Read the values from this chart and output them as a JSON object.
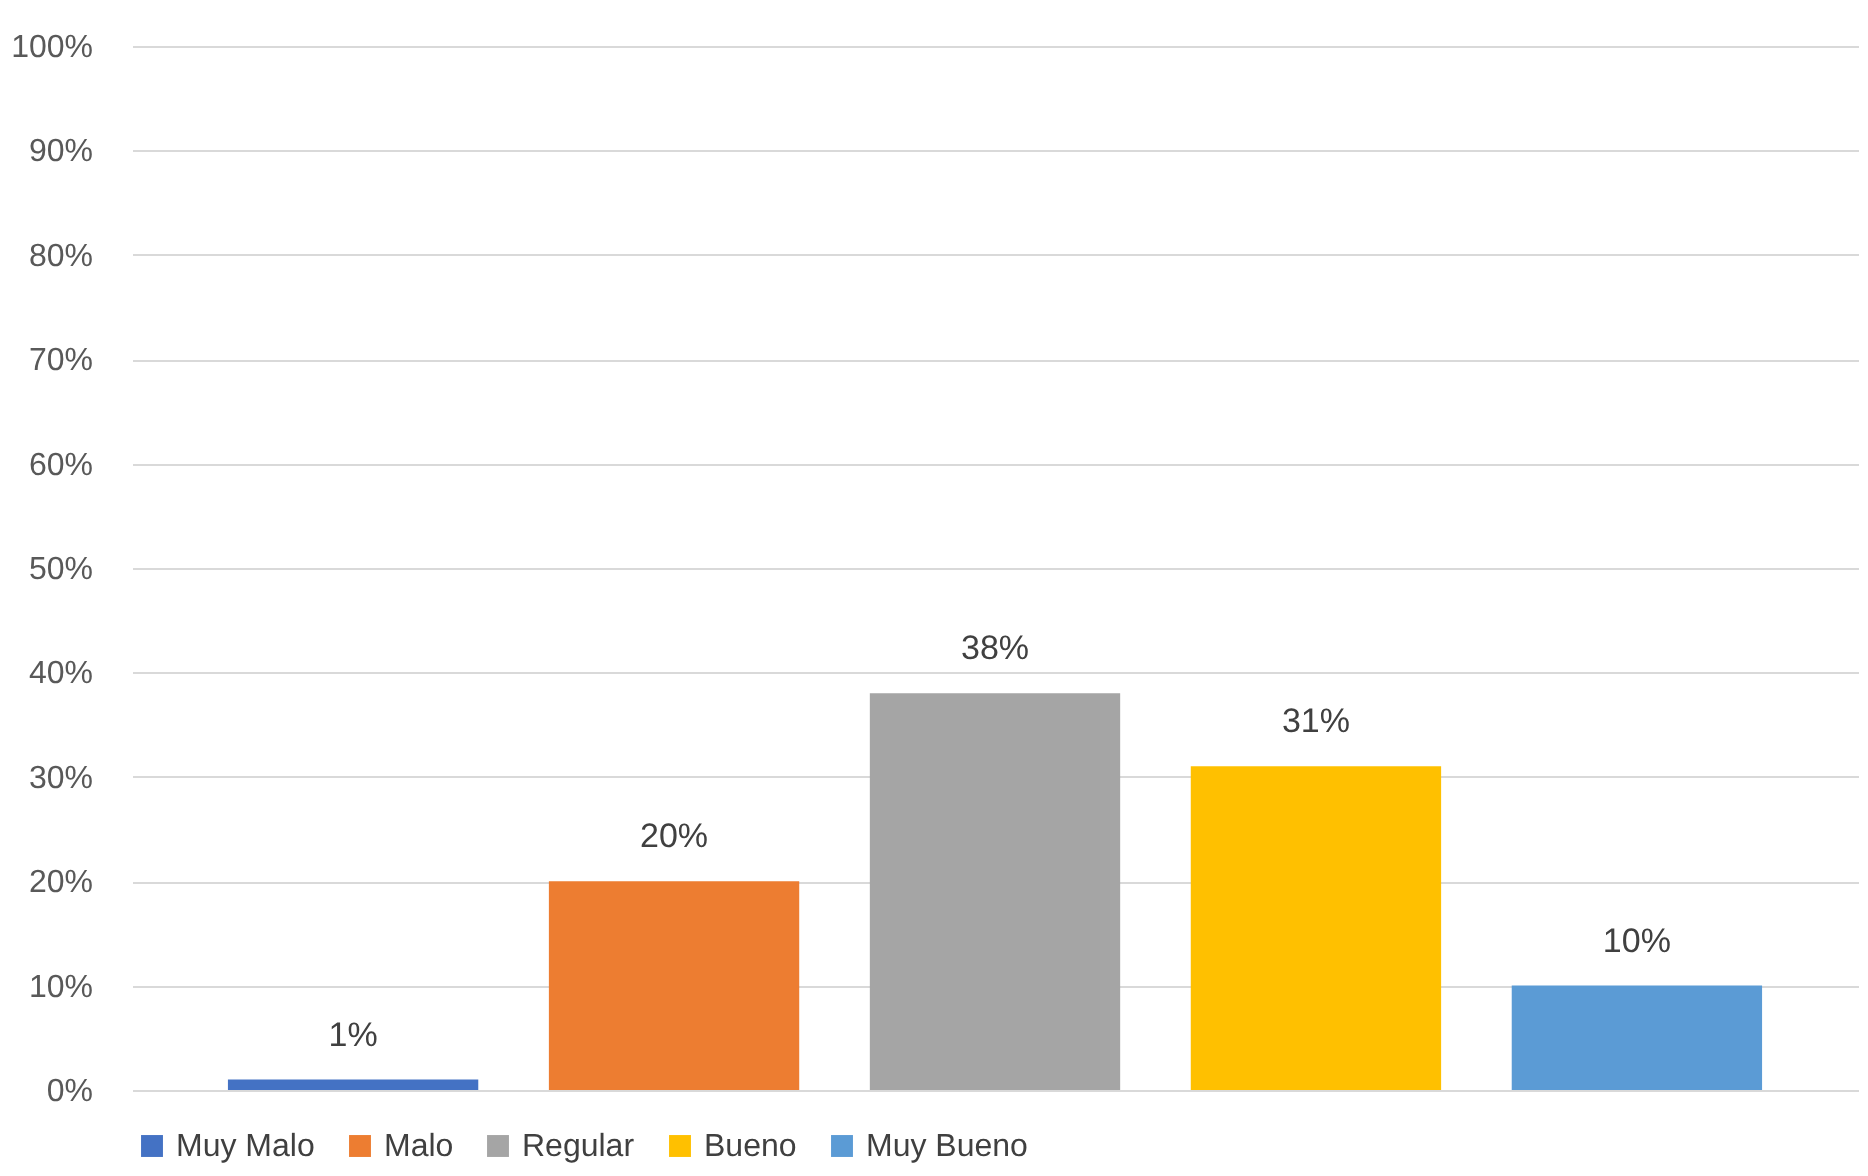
{
  "chart_data": {
    "type": "bar",
    "categories": [
      null
    ],
    "series": [
      {
        "name": "Muy Malo",
        "color": "#4472c4",
        "values": [
          1
        ],
        "value_labels": [
          "1%"
        ]
      },
      {
        "name": "Malo",
        "color": "#ed7d31",
        "values": [
          20
        ],
        "value_labels": [
          "20%"
        ]
      },
      {
        "name": "Regular",
        "color": "#a5a5a5",
        "values": [
          38
        ],
        "value_labels": [
          "38%"
        ]
      },
      {
        "name": "Bueno",
        "color": "#ffc000",
        "values": [
          31
        ],
        "value_labels": [
          "31%"
        ]
      },
      {
        "name": "Muy Bueno",
        "color": "#5b9bd5",
        "values": [
          10
        ],
        "value_labels": [
          "10%"
        ]
      }
    ],
    "ylim": [
      0,
      100
    ],
    "yticks": [
      {
        "value": 0,
        "label": "0%"
      },
      {
        "value": 10,
        "label": "10%"
      },
      {
        "value": 20,
        "label": "20%"
      },
      {
        "value": 30,
        "label": "30%"
      },
      {
        "value": 40,
        "label": "40%"
      },
      {
        "value": 50,
        "label": "50%"
      },
      {
        "value": 60,
        "label": "60%"
      },
      {
        "value": 70,
        "label": "70%"
      },
      {
        "value": 80,
        "label": "80%"
      },
      {
        "value": 90,
        "label": "90%"
      },
      {
        "value": 100,
        "label": "100%"
      }
    ],
    "grid": "y",
    "legend": "bottom",
    "tick_labels": "y"
  }
}
